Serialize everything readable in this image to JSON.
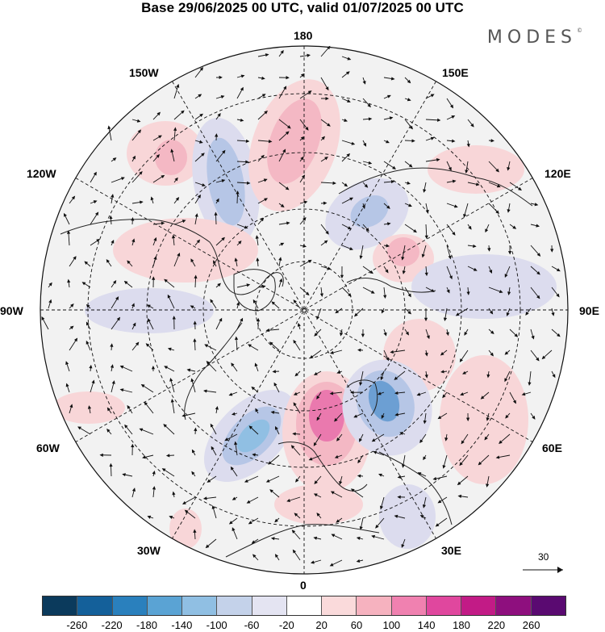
{
  "title": "Base 29/06/2025 00 UTC, valid 01/07/2025 00 UTC",
  "brand": "MODES",
  "brand_mark": "©",
  "longitude_labels": {
    "top": "180",
    "bottom": "0",
    "left": "90W",
    "right": "90E",
    "nw_outer": "150W",
    "nw_inner": "120W",
    "ne_outer": "150E",
    "ne_inner": "120E",
    "sw_inner": "60W",
    "sw_outer": "30W",
    "se_inner": "60E",
    "se_outer": "30E"
  },
  "vector_scale_label": "30",
  "colorbar": {
    "colors": [
      "#0b3a5c",
      "#14609a",
      "#2a80bd",
      "#5aa3d4",
      "#90bfe3",
      "#c4d2ea",
      "#e4e4f2",
      "#ffffff",
      "#fadadb",
      "#f6b2bf",
      "#f081b0",
      "#e0479e",
      "#c21b86",
      "#8e0f7e",
      "#5a0a71"
    ],
    "ticks": [
      "-260",
      "-220",
      "-180",
      "-140",
      "-100",
      "-60",
      "-20",
      "20",
      "60",
      "100",
      "140",
      "180",
      "220",
      "260"
    ]
  },
  "anomaly_colors": {
    "strong_positive": "#ea79ae",
    "positive": "#f4b8c4",
    "weak_positive": "#f8d6d8",
    "weak_negative": "#dcdcee",
    "negative": "#b6c6e6",
    "strong_negative": "#6c9fd3"
  }
}
